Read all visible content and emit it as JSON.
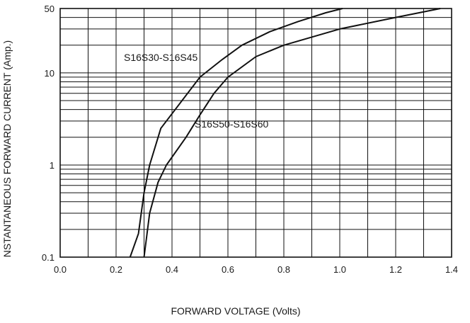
{
  "chart_data": {
    "type": "line",
    "xlabel": "FORWARD VOLTAGE (Volts)",
    "ylabel": "NSTANTANEOUS FORWARD CURRENT (Amp.)",
    "xlim": [
      0.0,
      1.4
    ],
    "ylim": [
      0.1,
      50
    ],
    "y_scale": "log",
    "grid": true,
    "x_ticks": [
      "0.0",
      "0.2",
      "0.4",
      "0.6",
      "0.8",
      "1.0",
      "1.2",
      "1.4"
    ],
    "y_ticks": [
      "0.1",
      "1",
      "10",
      "50"
    ],
    "series": [
      {
        "name": "S16S30-S16S45",
        "points": [
          [
            0.25,
            0.1
          ],
          [
            0.28,
            0.18
          ],
          [
            0.3,
            0.5
          ],
          [
            0.32,
            1.0
          ],
          [
            0.36,
            2.5
          ],
          [
            0.5,
            9.0
          ],
          [
            0.58,
            14.0
          ],
          [
            0.65,
            20.0
          ],
          [
            0.75,
            28.0
          ],
          [
            0.85,
            36.0
          ],
          [
            0.95,
            45.0
          ],
          [
            1.01,
            50.0
          ]
        ]
      },
      {
        "name": "S16S50-S16S60",
        "points": [
          [
            0.3,
            0.1
          ],
          [
            0.32,
            0.3
          ],
          [
            0.35,
            0.65
          ],
          [
            0.38,
            1.0
          ],
          [
            0.45,
            2.0
          ],
          [
            0.5,
            3.5
          ],
          [
            0.55,
            6.0
          ],
          [
            0.6,
            9.0
          ],
          [
            0.7,
            15.0
          ],
          [
            0.8,
            20.0
          ],
          [
            1.0,
            30.0
          ],
          [
            1.2,
            40.0
          ],
          [
            1.36,
            50.0
          ]
        ]
      }
    ],
    "colors": {
      "line": "#111111",
      "grid": "#111111"
    }
  }
}
